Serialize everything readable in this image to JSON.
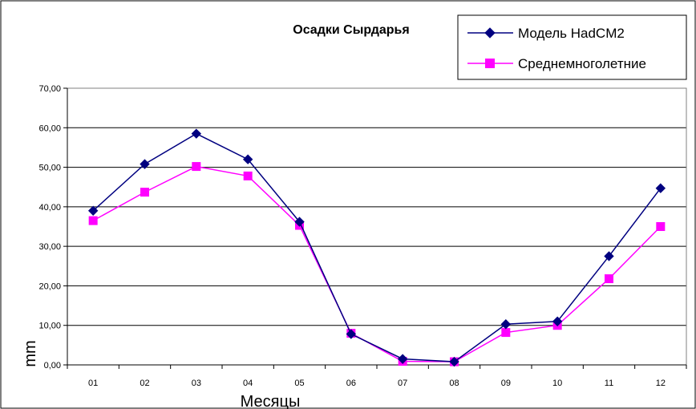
{
  "chart_data": {
    "type": "line",
    "title": "Осадки Сырдарья",
    "xlabel": "Месяцы",
    "ylabel": "mm",
    "categories": [
      "01",
      "02",
      "03",
      "04",
      "05",
      "06",
      "07",
      "08",
      "09",
      "10",
      "11",
      "12"
    ],
    "y_tick_labels": [
      "0,00",
      "10,00",
      "20,00",
      "30,00",
      "40,00",
      "50,00",
      "60,00",
      "70,00"
    ],
    "ylim": [
      0,
      70
    ],
    "grid": "horizontal",
    "legend_position": "top-right",
    "series": [
      {
        "name": "Модель HadCM2",
        "marker": "diamond",
        "color": "#000080",
        "values": [
          39.0,
          50.8,
          58.5,
          52.0,
          36.2,
          7.8,
          1.5,
          0.8,
          10.3,
          11.0,
          27.5,
          44.7
        ]
      },
      {
        "name": "Среднемноголетние",
        "marker": "square",
        "color": "#FF00FF",
        "values": [
          36.5,
          43.7,
          50.2,
          47.8,
          35.3,
          8.0,
          0.9,
          0.8,
          8.2,
          10.0,
          21.8,
          35.0
        ]
      }
    ]
  }
}
